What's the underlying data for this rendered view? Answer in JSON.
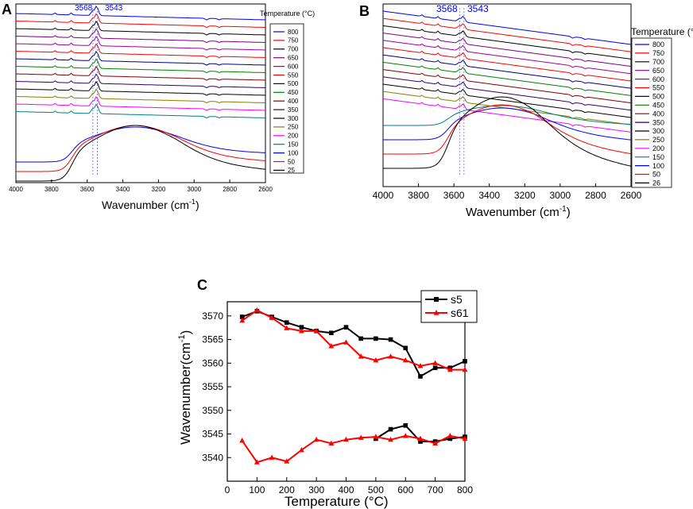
{
  "colors": {
    "black": "#000000",
    "red": "#ff0000",
    "blue": "#0000ff",
    "darkcyan": "#008080",
    "magenta": "#ff00ff",
    "olive": "#808000",
    "navy": "#000080",
    "purple": "#800080",
    "wine": "#800000",
    "green": "#008000",
    "indigo": "#31006b",
    "violet": "#a000a0",
    "marker_line": "#6b6bcf"
  },
  "chart_data": [
    {
      "panel": "A",
      "type": "line",
      "title": "",
      "xlabel": "Wavenumber (cm",
      "xlabel_sup": "-1",
      "xlabel_end": ")",
      "ylabel": "",
      "xlim": [
        4000,
        2600
      ],
      "x_ticks": [
        "4000",
        "3800",
        "3600",
        "3400",
        "3200",
        "3000",
        "2800",
        "2600"
      ],
      "marker_labels": [
        "3568",
        "3543"
      ],
      "markers": [
        3568,
        3543
      ],
      "legend_title": "Temperature (°C)",
      "series": [
        {
          "name": "800",
          "color": "#0000ff"
        },
        {
          "name": "750",
          "color": "#ff0000"
        },
        {
          "name": "700",
          "color": "#000000"
        },
        {
          "name": "650",
          "color": "#800080"
        },
        {
          "name": "600",
          "color": "#a000a0"
        },
        {
          "name": "550",
          "color": "#ff0000"
        },
        {
          "name": "500",
          "color": "#000080"
        },
        {
          "name": "450",
          "color": "#008000"
        },
        {
          "name": "400",
          "color": "#800000"
        },
        {
          "name": "350",
          "color": "#31006b"
        },
        {
          "name": "300",
          "color": "#000000"
        },
        {
          "name": "250",
          "color": "#808000"
        },
        {
          "name": "200",
          "color": "#ff00ff"
        },
        {
          "name": "150",
          "color": "#008080"
        },
        {
          "name": "100",
          "color": "#0000ff"
        },
        {
          "name": "50",
          "color": "#ff0000"
        },
        {
          "name": "25",
          "color": "#000000"
        }
      ]
    },
    {
      "panel": "B",
      "type": "line",
      "title": "",
      "xlabel": "Wavenumber (cm",
      "xlabel_sup": "-1",
      "xlabel_end": ")",
      "ylabel": "",
      "xlim": [
        4000,
        2600
      ],
      "x_ticks": [
        "4000",
        "3800",
        "3600",
        "3400",
        "3200",
        "3000",
        "2800",
        "2600"
      ],
      "marker_labels": [
        "3568",
        "3543"
      ],
      "markers": [
        3568,
        3543
      ],
      "legend_title": "Temperature (°C)",
      "series": [
        {
          "name": "800",
          "color": "#0000ff"
        },
        {
          "name": "750",
          "color": "#ff0000"
        },
        {
          "name": "700",
          "color": "#000000"
        },
        {
          "name": "650",
          "color": "#800080"
        },
        {
          "name": "600",
          "color": "#a000a0"
        },
        {
          "name": "550",
          "color": "#ff0000"
        },
        {
          "name": "500",
          "color": "#000080"
        },
        {
          "name": "450",
          "color": "#008000"
        },
        {
          "name": "400",
          "color": "#800000"
        },
        {
          "name": "350",
          "color": "#31006b"
        },
        {
          "name": "300",
          "color": "#000000"
        },
        {
          "name": "250",
          "color": "#808000"
        },
        {
          "name": "200",
          "color": "#ff00ff"
        },
        {
          "name": "150",
          "color": "#008080"
        },
        {
          "name": "100",
          "color": "#0000ff"
        },
        {
          "name": "50",
          "color": "#ff0000"
        },
        {
          "name": "26",
          "color": "#000000"
        }
      ]
    },
    {
      "panel": "C",
      "type": "line",
      "title": "",
      "xlabel": "Temperature (°C)",
      "ylabel": "Wavenumber(cm",
      "ylabel_sup": "-1",
      "ylabel_end": ")",
      "xlim": [
        0,
        800
      ],
      "ylim": [
        3535,
        3573
      ],
      "x_ticks": [
        "0",
        "100",
        "200",
        "300",
        "400",
        "500",
        "600",
        "700",
        "800"
      ],
      "y_ticks": [
        "3540",
        "3545",
        "3550",
        "3555",
        "3560",
        "3565",
        "3570"
      ],
      "legend": [
        "s5",
        "s61"
      ],
      "series": [
        {
          "name": "s5",
          "color": "#000000",
          "marker": "square",
          "x": [
            50,
            100,
            150,
            200,
            250,
            300,
            350,
            400,
            450,
            500,
            550,
            600,
            650,
            700,
            750,
            800
          ],
          "y": [
            3569.8,
            3571.0,
            3569.8,
            3568.6,
            3567.6,
            3566.8,
            3566.4,
            3567.6,
            3565.2,
            3565.2,
            3565.0,
            3563.2,
            3557.2,
            3559.0,
            3559.0,
            3560.4
          ]
        },
        {
          "name": "s5",
          "color": "#000000",
          "marker": "square",
          "x": [
            500,
            550,
            600,
            650,
            700,
            750,
            800
          ],
          "y": [
            3544.0,
            3546.0,
            3546.8,
            3543.4,
            3543.4,
            3544.0,
            3544.4
          ]
        },
        {
          "name": "s61",
          "color": "#ff0000",
          "marker": "triangle",
          "x": [
            50,
            100,
            150,
            200,
            250,
            300,
            350,
            400,
            450,
            500,
            550,
            600,
            650,
            700,
            750,
            800
          ],
          "y": [
            3569.0,
            3571.2,
            3569.6,
            3567.4,
            3566.8,
            3566.8,
            3563.6,
            3564.4,
            3561.4,
            3560.6,
            3561.4,
            3560.6,
            3559.4,
            3560.0,
            3558.6,
            3558.6
          ]
        },
        {
          "name": "s61",
          "color": "#ff0000",
          "marker": "triangle",
          "x": [
            50,
            100,
            150,
            200,
            250,
            300,
            350,
            400,
            450,
            500,
            550,
            600,
            650,
            700,
            750,
            800
          ],
          "y": [
            3543.6,
            3539.0,
            3540.0,
            3539.2,
            3541.6,
            3543.8,
            3543.0,
            3543.8,
            3544.2,
            3544.4,
            3543.8,
            3544.6,
            3544.0,
            3543.0,
            3544.6,
            3544.0
          ]
        }
      ]
    }
  ],
  "panel_labels": [
    "A",
    "B",
    "C"
  ]
}
